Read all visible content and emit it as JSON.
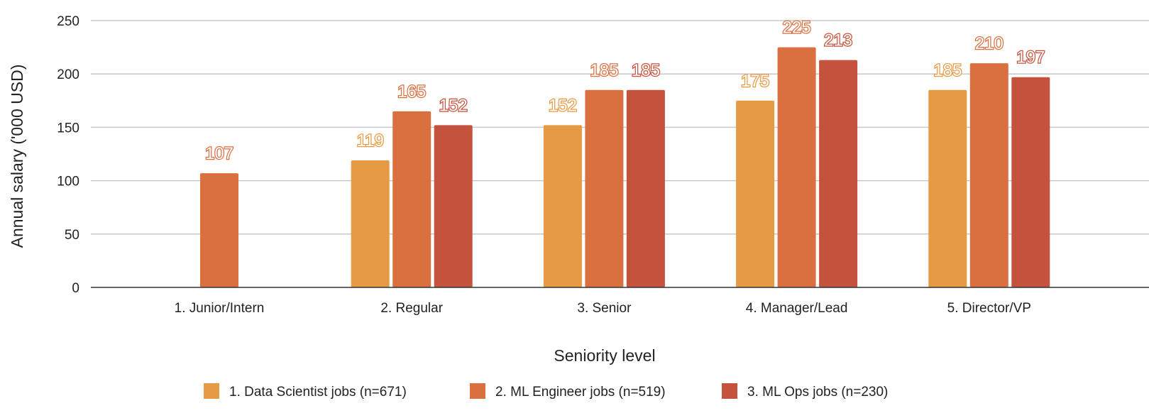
{
  "chart_data": {
    "type": "bar",
    "title": "",
    "xlabel": "Seniority level",
    "ylabel": "Annual salary ('000 USD)",
    "ylim": [
      0,
      250
    ],
    "yticks": [
      "0",
      "50",
      "100",
      "150",
      "200",
      "250"
    ],
    "grid": true,
    "legend_position": "bottom",
    "categories": [
      "1. Junior/Intern",
      "2. Regular",
      "3. Senior",
      "4. Manager/Lead",
      "5. Director/VP"
    ],
    "series": [
      {
        "name": "1. Data Scientist jobs (n=671)",
        "color": "#E69A43",
        "values": [
          null,
          119,
          152,
          175,
          185
        ]
      },
      {
        "name": "2. ML Engineer jobs (n=519)",
        "color": "#DA6F40",
        "values": [
          107,
          165,
          185,
          225,
          210
        ]
      },
      {
        "name": "3. ML Ops jobs (n=230)",
        "color": "#C5523C",
        "values": [
          null,
          152,
          185,
          213,
          197
        ]
      }
    ]
  }
}
